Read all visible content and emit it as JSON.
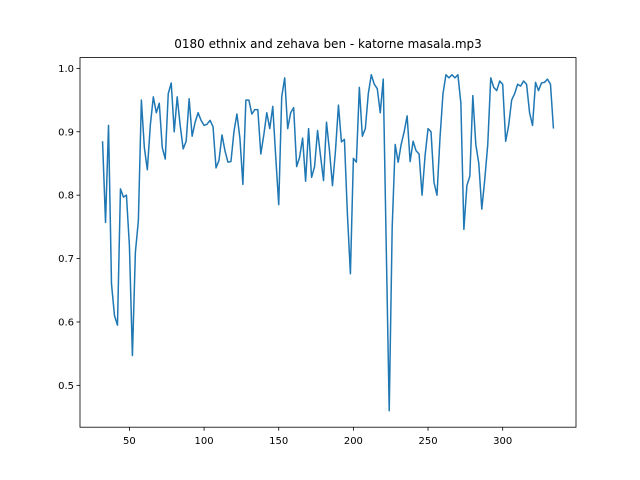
{
  "chart_data": {
    "type": "line",
    "title": "0180 ethnix and zehava ben - katorne masala.mp3",
    "color": "#1f77b4",
    "x": [
      32,
      34,
      36,
      38,
      40,
      42,
      44,
      46,
      48,
      50,
      52,
      54,
      56,
      58,
      60,
      62,
      64,
      66,
      68,
      70,
      72,
      74,
      76,
      78,
      80,
      82,
      84,
      86,
      88,
      90,
      92,
      94,
      96,
      98,
      100,
      102,
      104,
      106,
      108,
      110,
      112,
      114,
      116,
      118,
      120,
      122,
      124,
      126,
      128,
      130,
      132,
      134,
      136,
      138,
      140,
      142,
      144,
      146,
      148,
      150,
      152,
      154,
      156,
      158,
      160,
      162,
      164,
      166,
      168,
      170,
      172,
      174,
      176,
      178,
      180,
      182,
      184,
      186,
      188,
      190,
      192,
      194,
      196,
      198,
      200,
      202,
      204,
      206,
      208,
      210,
      212,
      214,
      216,
      218,
      220,
      222,
      224,
      226,
      228,
      230,
      232,
      234,
      236,
      238,
      240,
      242,
      244,
      246,
      248,
      250,
      252,
      254,
      256,
      258,
      260,
      262,
      264,
      266,
      268,
      270,
      272,
      274,
      276,
      278,
      280,
      282,
      284,
      286,
      288,
      290,
      292,
      294,
      296,
      298,
      300,
      302,
      304,
      306,
      308,
      310,
      312,
      314,
      316,
      318,
      320,
      322,
      324,
      326,
      328,
      330,
      332,
      334
    ],
    "values": [
      0.885,
      0.757,
      0.91,
      0.66,
      0.61,
      0.595,
      0.81,
      0.797,
      0.8,
      0.72,
      0.547,
      0.71,
      0.76,
      0.95,
      0.875,
      0.84,
      0.91,
      0.955,
      0.93,
      0.945,
      0.875,
      0.857,
      0.96,
      0.977,
      0.9,
      0.955,
      0.91,
      0.873,
      0.885,
      0.952,
      0.893,
      0.915,
      0.93,
      0.918,
      0.91,
      0.912,
      0.918,
      0.908,
      0.843,
      0.855,
      0.895,
      0.87,
      0.852,
      0.853,
      0.9,
      0.928,
      0.89,
      0.817,
      0.95,
      0.95,
      0.928,
      0.935,
      0.935,
      0.865,
      0.895,
      0.93,
      0.905,
      0.94,
      0.86,
      0.785,
      0.955,
      0.985,
      0.905,
      0.93,
      0.938,
      0.845,
      0.86,
      0.89,
      0.822,
      0.905,
      0.828,
      0.845,
      0.902,
      0.862,
      0.823,
      0.915,
      0.87,
      0.815,
      0.87,
      0.942,
      0.884,
      0.888,
      0.77,
      0.676,
      0.858,
      0.852,
      0.97,
      0.893,
      0.905,
      0.96,
      0.99,
      0.975,
      0.968,
      0.93,
      0.983,
      0.72,
      0.46,
      0.75,
      0.88,
      0.852,
      0.88,
      0.9,
      0.925,
      0.853,
      0.885,
      0.87,
      0.865,
      0.8,
      0.862,
      0.905,
      0.9,
      0.82,
      0.8,
      0.89,
      0.96,
      0.99,
      0.985,
      0.99,
      0.985,
      0.99,
      0.945,
      0.746,
      0.815,
      0.83,
      0.957,
      0.88,
      0.85,
      0.778,
      0.825,
      0.88,
      0.985,
      0.97,
      0.965,
      0.98,
      0.975,
      0.885,
      0.91,
      0.95,
      0.96,
      0.975,
      0.972,
      0.98,
      0.975,
      0.93,
      0.91,
      0.978,
      0.965,
      0.977,
      0.978,
      0.983,
      0.975,
      0.905
    ],
    "xlim": [
      16.9,
      349.1
    ],
    "ylim": [
      0.434,
      1.017
    ],
    "xticks": [
      50,
      100,
      150,
      200,
      250,
      300
    ],
    "yticks": [
      0.5,
      0.6,
      0.7,
      0.8,
      0.9,
      {
        "value": 1,
        "label": "1.0"
      }
    ]
  }
}
